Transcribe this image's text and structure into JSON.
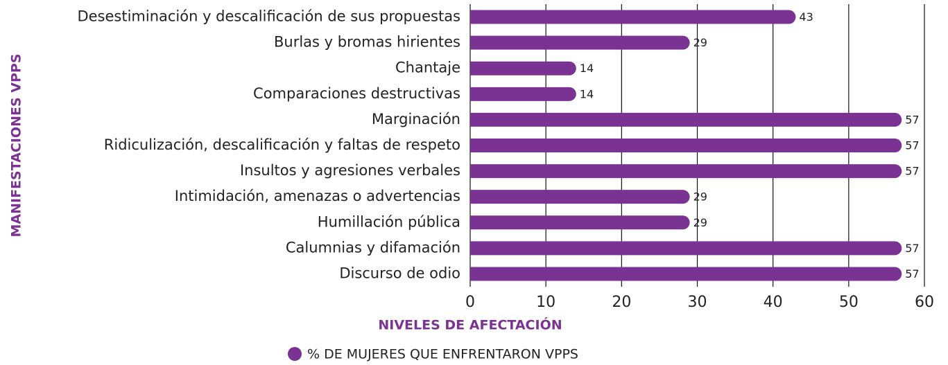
{
  "chart_data": {
    "type": "hbar",
    "x_label": "NIVELES DE AFECTACIÓN",
    "y_label": "MANIFESTACIONES VPPS",
    "categories": [
      "Desestiminación y descalificación de sus propuestas",
      "Burlas y bromas hirientes",
      "Chantaje",
      "Comparaciones destructivas",
      "Marginación",
      "Ridiculización, descalificación y faltas de respeto",
      "Insultos y agresiones verbales",
      "Intimidación, amenazas o advertencias",
      "Humillación pública",
      "Calumnias y difamación",
      "Discurso de odio"
    ],
    "series": [
      {
        "name": "% DE MUJERES QUE ENFRENTARON VPPS",
        "color": "#7b3393",
        "values": [
          43,
          29,
          14,
          14,
          57,
          57,
          57,
          29,
          29,
          57,
          57
        ]
      }
    ],
    "xlim": [
      0,
      60
    ],
    "xticks": [
      0,
      10,
      20,
      30,
      40,
      50,
      60
    ],
    "grid": true
  }
}
